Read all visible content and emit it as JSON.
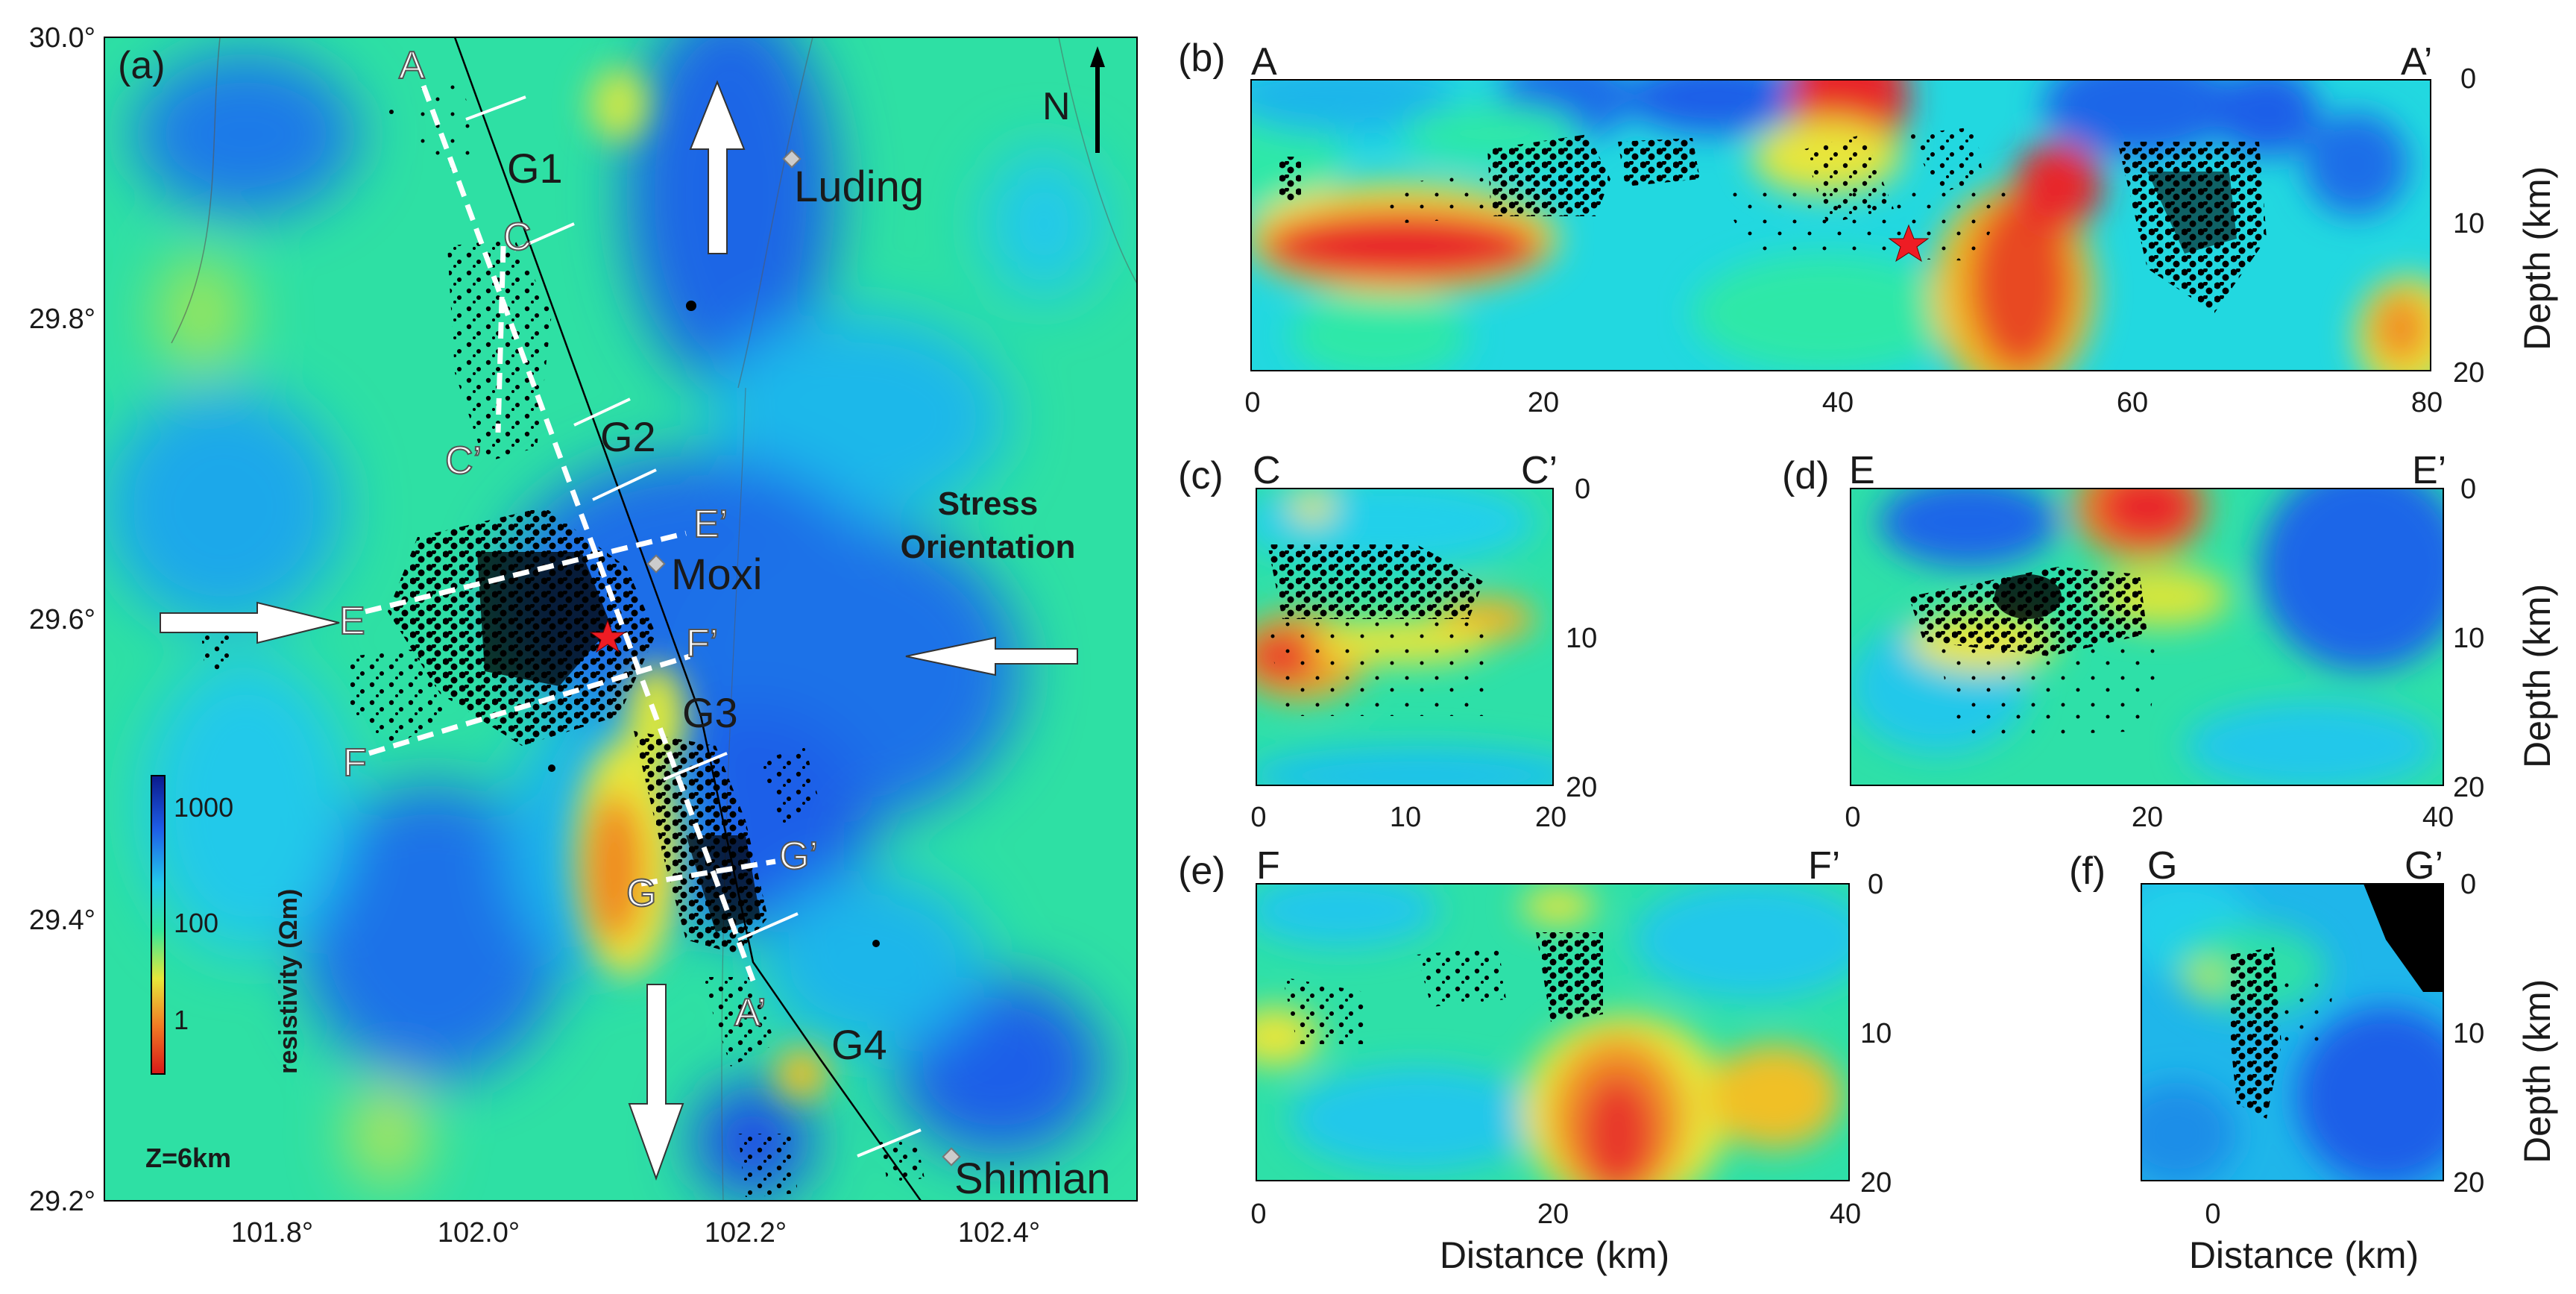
{
  "panel_a": {
    "label": "(a)",
    "lat_ticks": [
      "30.0°",
      "29.8°",
      "29.6°",
      "29.4°",
      "29.2°"
    ],
    "lon_ticks": [
      "101.8°",
      "102.0°",
      "102.2°",
      "102.4°"
    ],
    "towns": [
      "Luding",
      "Moxi",
      "Shimian"
    ],
    "segments": [
      "G1",
      "G2",
      "G3",
      "G4"
    ],
    "profile_ends": [
      "A",
      "A’",
      "C",
      "C’",
      "E",
      "E’",
      "F",
      "F’",
      "G",
      "G’"
    ],
    "north": "N",
    "stress_label": [
      "Stress",
      "Orientation"
    ],
    "depth_label": "Z=6km",
    "colorbar": {
      "title": "resistivity (Ωm)",
      "ticks": [
        "1000",
        "100",
        "1"
      ]
    }
  },
  "panel_b": {
    "label": "(b)",
    "start": "A",
    "end": "A’",
    "x_ticks": [
      "0",
      "20",
      "40",
      "60",
      "80"
    ],
    "depth_ticks": [
      "0",
      "10",
      "20"
    ],
    "depth_title": "Depth (km)"
  },
  "panel_c": {
    "label": "(c)",
    "start": "C",
    "end": "C’",
    "x_ticks": [
      "0",
      "10",
      "20"
    ],
    "depth_ticks": [
      "0",
      "10",
      "20"
    ]
  },
  "panel_d": {
    "label": "(d)",
    "start": "E",
    "end": "E’",
    "x_ticks": [
      "0",
      "20",
      "40"
    ],
    "depth_ticks": [
      "0",
      "10",
      "20"
    ],
    "depth_title": "Depth (km)"
  },
  "panel_e": {
    "label": "(e)",
    "start": "F",
    "end": "F’",
    "x_ticks": [
      "0",
      "20",
      "40"
    ],
    "depth_ticks": [
      "0",
      "10",
      "20"
    ],
    "x_title": "Distance (km)"
  },
  "panel_f": {
    "label": "(f)",
    "start": "G",
    "end": "G’",
    "x_ticks": [
      "0"
    ],
    "depth_ticks": [
      "0",
      "10",
      "20"
    ],
    "depth_title": "Depth (km)",
    "x_title": "Distance (km)"
  },
  "colors": {
    "red": "#e8262a",
    "yellow": "#e9e63a",
    "green": "#2fe89a",
    "cyan": "#1fd6e8",
    "blue": "#1e6fe8",
    "seismicity": "#000000",
    "epicenter": "#ee1c24"
  }
}
